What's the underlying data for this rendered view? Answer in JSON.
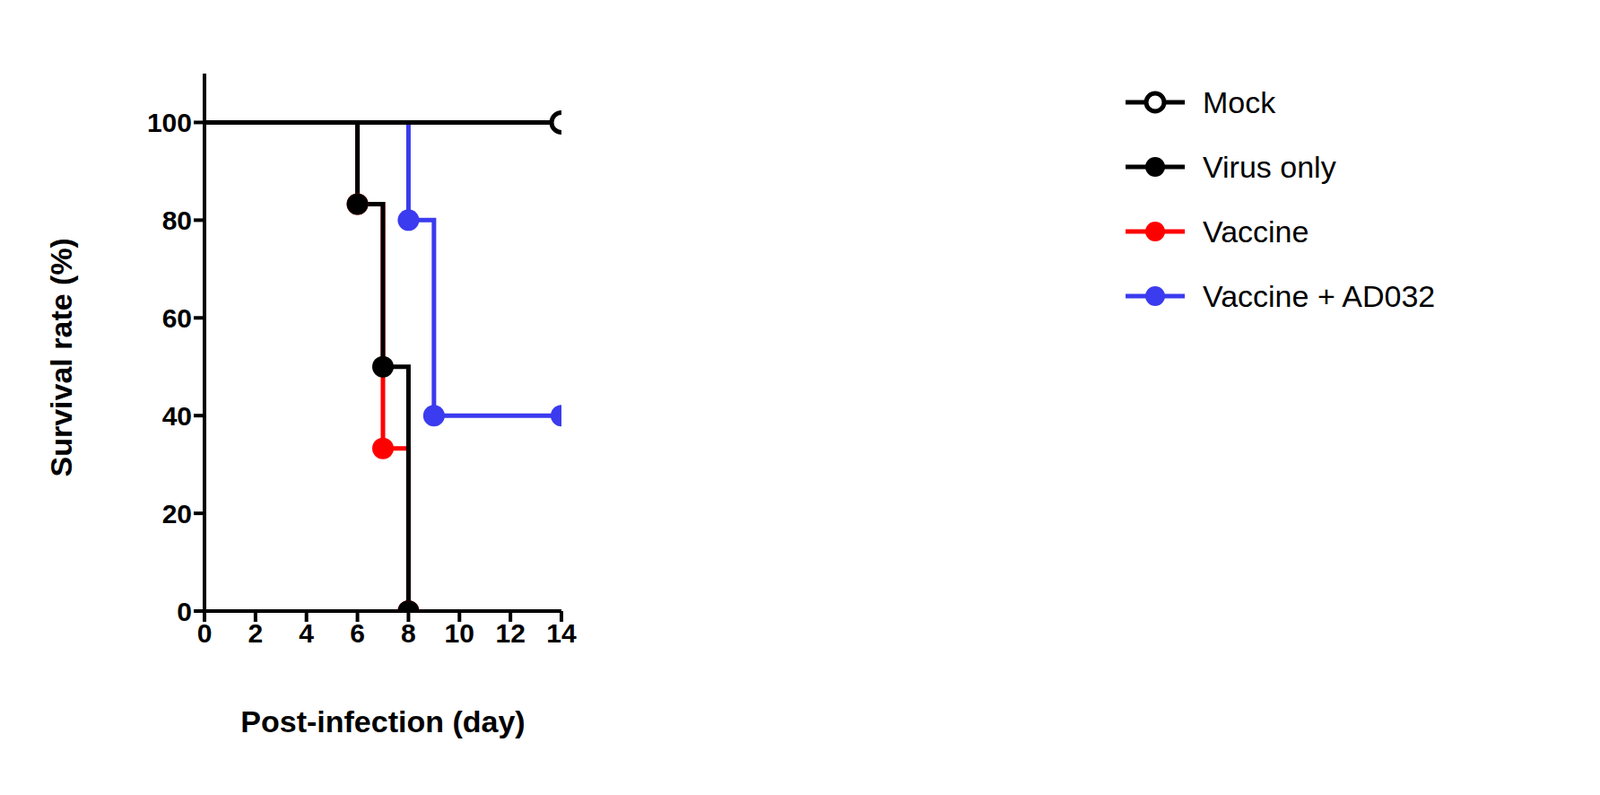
{
  "chart_data": {
    "type": "line",
    "x_label": "Post-infection (day)",
    "y_label": "Survival rate  (%)",
    "x": [
      0,
      6,
      7,
      8,
      9,
      14
    ],
    "xlim": [
      0,
      14
    ],
    "xticks": [
      0,
      2,
      4,
      6,
      8,
      10,
      12,
      14
    ],
    "ylim": [
      0,
      110
    ],
    "yticks": [
      0,
      20,
      40,
      60,
      80,
      100
    ],
    "grid": false,
    "line_style": "step",
    "series": [
      {
        "name": "Mock",
        "color": "#000000",
        "marker": "open",
        "values": [
          100,
          100,
          100,
          100,
          100,
          100
        ]
      },
      {
        "name": "Virus only",
        "color": "#000000",
        "marker": "circle",
        "values": [
          100,
          83.3,
          50,
          0,
          null,
          null
        ]
      },
      {
        "name": "Vaccine",
        "color": "#ff0000",
        "marker": "circle",
        "values": [
          100,
          83.3,
          33.3,
          0,
          null,
          null
        ]
      },
      {
        "name": "Vaccine + AD032",
        "color": "#3b3bef",
        "marker": "circle",
        "values": [
          100,
          100,
          100,
          80,
          40,
          40
        ]
      }
    ]
  }
}
